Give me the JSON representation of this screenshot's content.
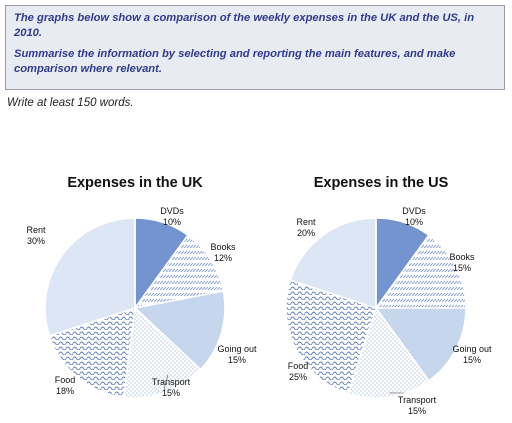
{
  "task": {
    "prompt": "The graphs below show a comparison of the weekly expenses in the UK and the US, in 2010.",
    "instruction": "Summarise the information by selecting and reporting the main features, and make comparison where relevant."
  },
  "word_requirement": "Write at least 150 words.",
  "colors": {
    "dvds": "#7394cf",
    "books_pattern": "#8fa8d6",
    "going_out": "#c6d6ec",
    "transport_pattern": "#b6c5e0",
    "food_pattern": "#5f7fb8",
    "rent": "#dde6f4"
  },
  "chart_data": [
    {
      "type": "pie",
      "title": "Expenses in the UK",
      "slices": [
        {
          "label": "DVDs",
          "value": 10,
          "value_label": "10%",
          "fill": "solid-dark"
        },
        {
          "label": "Books",
          "value": 12,
          "value_label": "12%",
          "fill": "diagonal-dashes"
        },
        {
          "label": "Going out",
          "value": 15,
          "value_label": "15%",
          "fill": "solid-light"
        },
        {
          "label": "Transport",
          "value": 15,
          "value_label": "15%",
          "fill": "dots"
        },
        {
          "label": "Food",
          "value": 18,
          "value_label": "18%",
          "fill": "waves"
        },
        {
          "label": "Rent",
          "value": 30,
          "value_label": "30%",
          "fill": "solid-pale"
        }
      ]
    },
    {
      "type": "pie",
      "title": "Expenses in the US",
      "slices": [
        {
          "label": "DVDs",
          "value": 10,
          "value_label": "10%",
          "fill": "solid-dark"
        },
        {
          "label": "Books",
          "value": 15,
          "value_label": "15%",
          "fill": "diagonal-dashes"
        },
        {
          "label": "Going out",
          "value": 15,
          "value_label": "15%",
          "fill": "solid-light"
        },
        {
          "label": "Transport",
          "value": 15,
          "value_label": "15%",
          "fill": "dots"
        },
        {
          "label": "Food",
          "value": 25,
          "value_label": "25%",
          "fill": "waves"
        },
        {
          "label": "Rent",
          "value": 20,
          "value_label": "20%",
          "fill": "solid-pale"
        }
      ]
    }
  ]
}
